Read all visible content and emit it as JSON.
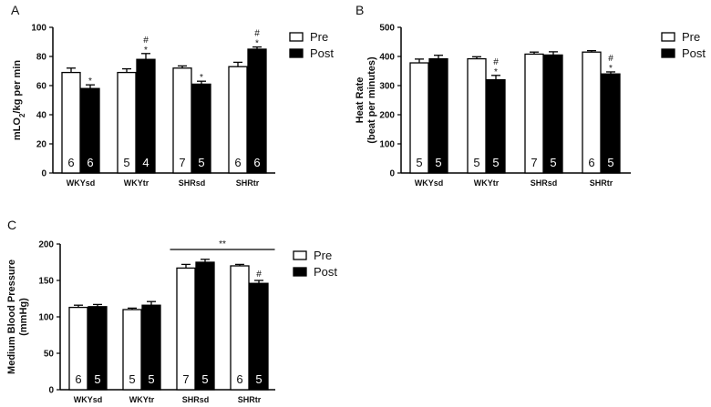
{
  "legend": {
    "pre": "Pre",
    "post": "Post"
  },
  "colors": {
    "pre": "#ffffff",
    "post": "#000000",
    "axis": "#000000"
  },
  "chart_data": [
    {
      "panel_label": "A",
      "type": "bar",
      "ylabel_main": "mLO",
      "ylabel_sub": "2",
      "ylabel_rest": "/kg per min",
      "ylim": [
        0,
        100
      ],
      "yticks": [
        0,
        20,
        40,
        60,
        80,
        100
      ],
      "categories": [
        "WKYsd",
        "WKYtr",
        "SHRsd",
        "SHRtr"
      ],
      "series": [
        {
          "name": "Pre",
          "values": [
            69,
            69,
            72,
            73
          ],
          "errors": [
            3,
            2.5,
            1.5,
            3
          ],
          "n": [
            "6",
            "5",
            "7",
            "6"
          ],
          "marks": [
            "",
            "",
            "",
            ""
          ]
        },
        {
          "name": "Post",
          "values": [
            58,
            78,
            61,
            85
          ],
          "errors": [
            2.5,
            4,
            2,
            1.5
          ],
          "n": [
            "6",
            "4",
            "5",
            "6"
          ],
          "marks": [
            "*",
            "#\n*",
            "*",
            "#\n*"
          ]
        }
      ],
      "legend_position": "top-right"
    },
    {
      "panel_label": "B",
      "type": "bar",
      "ylabel_line1": "Heat Rate",
      "ylabel_line2": "(beat per minutes)",
      "ylim": [
        0,
        500
      ],
      "yticks": [
        0,
        100,
        200,
        300,
        400,
        500
      ],
      "categories": [
        "WKYsd",
        "WKYtr",
        "SHRsd",
        "SHRtr"
      ],
      "series": [
        {
          "name": "Pre",
          "values": [
            378,
            392,
            408,
            415
          ],
          "errors": [
            13,
            7,
            7,
            5
          ],
          "n": [
            "5",
            "5",
            "7",
            "6"
          ],
          "marks": [
            "",
            "",
            "",
            ""
          ]
        },
        {
          "name": "Post",
          "values": [
            392,
            320,
            405,
            340
          ],
          "errors": [
            12,
            15,
            11,
            7
          ],
          "n": [
            "5",
            "5",
            "5",
            "5"
          ],
          "marks": [
            "",
            "#\n*",
            "",
            "#\n*"
          ]
        }
      ],
      "legend_position": "top-right"
    },
    {
      "panel_label": "C",
      "type": "bar",
      "ylabel_line1": "Medium Blood Pressure",
      "ylabel_line2": "(mmHg)",
      "ylim": [
        0,
        200
      ],
      "yticks": [
        0,
        50,
        100,
        150,
        200
      ],
      "categories": [
        "WKYsd",
        "WKYtr",
        "SHRsd",
        "SHRtr"
      ],
      "series": [
        {
          "name": "Pre",
          "values": [
            113,
            110,
            167,
            170
          ],
          "errors": [
            3,
            2,
            5,
            2
          ],
          "n": [
            "6",
            "5",
            "7",
            "6"
          ],
          "marks": [
            "",
            "",
            "",
            ""
          ]
        },
        {
          "name": "Post",
          "values": [
            114,
            116,
            175,
            146
          ],
          "errors": [
            3,
            5,
            4,
            4
          ],
          "n": [
            "5",
            "5",
            "5",
            "5"
          ],
          "marks": [
            "",
            "",
            "",
            "#"
          ]
        }
      ],
      "significance": {
        "from": "SHRsd",
        "to": "SHRtr",
        "label": "**"
      },
      "legend_position": "top-right"
    }
  ]
}
